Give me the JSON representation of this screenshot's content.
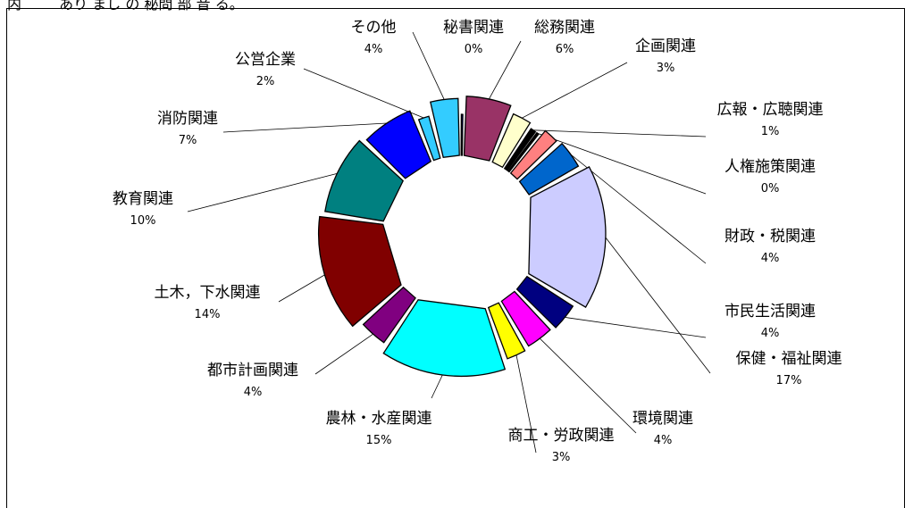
{
  "top_text": "内 　 　あり まし の 秘問 部 音 る。",
  "chart_data": {
    "type": "pie",
    "style": "exploded-3d",
    "slices": [
      {
        "label": "秘書関連",
        "pct": "0%",
        "value": 0.3,
        "color": "#000080"
      },
      {
        "label": "総務関連",
        "pct": "6%",
        "value": 6,
        "color": "#993366"
      },
      {
        "label": "企画関連",
        "pct": "3%",
        "value": 3,
        "color": "#ffffcc"
      },
      {
        "label": "広報・広聴関連",
        "pct": "1%",
        "value": 1,
        "color": "#000000"
      },
      {
        "label": "人権施策関連",
        "pct": "0%",
        "value": 0.4,
        "color": "#000000"
      },
      {
        "label": "",
        "pct": "",
        "value": 2.5,
        "color": "#ff8080"
      },
      {
        "label": "財政・税関連",
        "pct": "4%",
        "value": 4,
        "color": "#0066cc"
      },
      {
        "label": "保健・福祉関連",
        "pct": "17%",
        "value": 17,
        "color": "#ccccff"
      },
      {
        "label": "市民生活関連",
        "pct": "4%",
        "value": 4,
        "color": "#000080"
      },
      {
        "label": "環境関連",
        "pct": "4%",
        "value": 4,
        "color": "#ff00ff"
      },
      {
        "label": "商工・労政関連",
        "pct": "3%",
        "value": 3,
        "color": "#ffff00"
      },
      {
        "label": "農林・水産関連",
        "pct": "15%",
        "value": 15,
        "color": "#00ffff"
      },
      {
        "label": "都市計画関連",
        "pct": "4%",
        "value": 4,
        "color": "#800080"
      },
      {
        "label": "土木，下水関連",
        "pct": "14%",
        "value": 14,
        "color": "#800000"
      },
      {
        "label": "教育関連",
        "pct": "10%",
        "value": 10,
        "color": "#008080"
      },
      {
        "label": "消防関連",
        "pct": "7%",
        "value": 7,
        "color": "#0000ff"
      },
      {
        "label": "公営企業",
        "pct": "2%",
        "value": 2,
        "color": "#33ccff"
      },
      {
        "label": "その他",
        "pct": "4%",
        "value": 4,
        "color": "#33ccff"
      }
    ]
  }
}
